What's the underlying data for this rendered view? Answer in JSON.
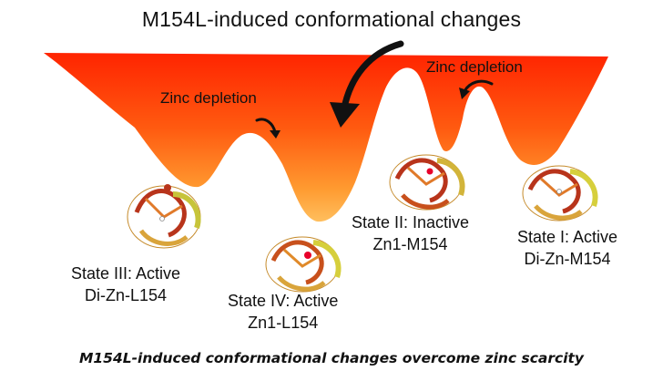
{
  "title": "M154L-induced conformational changes",
  "annotations": {
    "zinc_depletion_left": "Zinc depletion",
    "zinc_depletion_right": "Zinc depletion"
  },
  "states": [
    {
      "name": "State III: Active",
      "variant": "Di-Zn-L154"
    },
    {
      "name": "State IV: Active",
      "variant": "Zn1-L154"
    },
    {
      "name": "State II: Inactive",
      "variant": "Zn1-M154"
    },
    {
      "name": "State I: Active",
      "variant": "Di-Zn-M154"
    }
  ],
  "caption": "M154L-induced conformational changes overcome zinc scarcity",
  "colors": {
    "landscape_top": "#ff2a00",
    "landscape_bottom": "#ffb347",
    "arrow": "#111111",
    "zinc_marker": "#e8002a"
  }
}
